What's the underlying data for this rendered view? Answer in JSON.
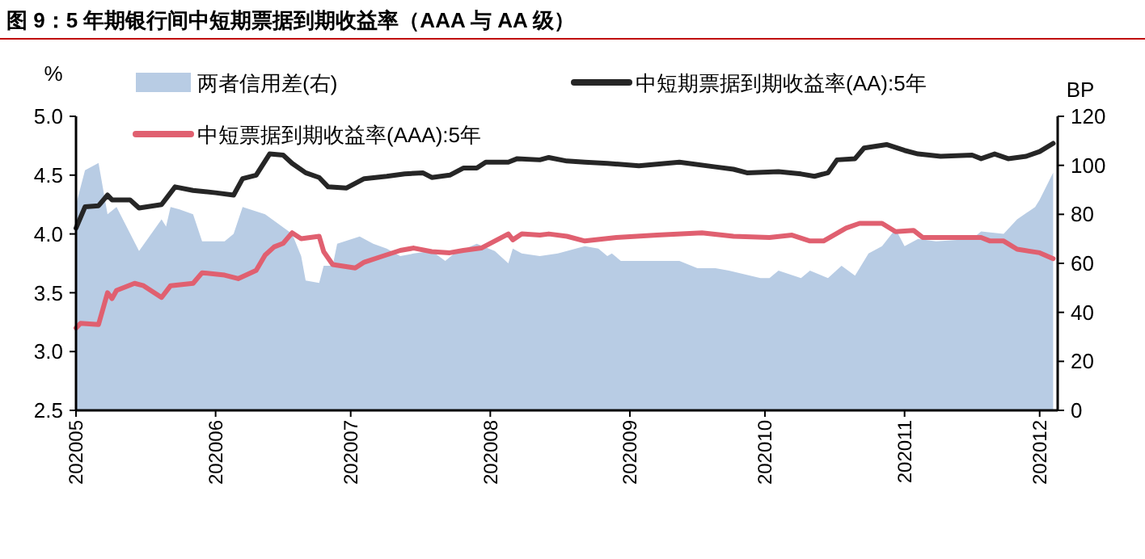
{
  "chart_data": {
    "type": "line",
    "title": "图 9：5 年期银行间中短期票据到期收益率（AAA 与 AA 级）",
    "ylabel": "%",
    "y2label": "BP",
    "xlim": [
      "2020-05-01",
      "2020-12-05"
    ],
    "xticks": [
      {
        "value": "2020-05-01",
        "label": "202005"
      },
      {
        "value": "2020-06-01",
        "label": "202006"
      },
      {
        "value": "2020-07-01",
        "label": "202007"
      },
      {
        "value": "2020-08-01",
        "label": "202008"
      },
      {
        "value": "2020-09-01",
        "label": "202009"
      },
      {
        "value": "2020-10-01",
        "label": "202010"
      },
      {
        "value": "2020-11-01",
        "label": "202011"
      },
      {
        "value": "2020-12-01",
        "label": "202012"
      }
    ],
    "ylim": [
      2.5,
      5
    ],
    "yticks": [
      2.5,
      {
        "value": 3,
        "label": "3.0"
      },
      3.5,
      {
        "value": 4,
        "label": "4.0"
      },
      4.5,
      {
        "value": 5,
        "label": "5.0"
      }
    ],
    "y2lim": [
      0,
      120
    ],
    "y2ticks": [
      0,
      20,
      40,
      60,
      80,
      100,
      120
    ],
    "grid": false,
    "legend": "top",
    "line_style": "solid",
    "marker": "none",
    "series": [
      {
        "name": "两者信用差(右)",
        "type": "area",
        "axis": "y2",
        "color": "#b8cce4",
        "x": [
          "2020-05-01",
          "2020-05-03",
          "2020-05-06",
          "2020-05-08",
          "2020-05-10",
          "2020-05-15",
          "2020-05-20",
          "2020-05-21",
          "2020-05-22",
          "2020-05-24",
          "2020-05-27",
          "2020-05-29",
          "2020-06-03",
          "2020-06-05",
          "2020-06-07",
          "2020-06-12",
          "2020-06-18",
          "2020-06-20",
          "2020-06-21",
          "2020-06-24",
          "2020-06-25",
          "2020-06-27",
          "2020-06-28",
          "2020-07-03",
          "2020-07-06",
          "2020-07-09",
          "2020-07-12",
          "2020-07-15",
          "2020-07-19",
          "2020-07-22",
          "2020-07-24",
          "2020-07-29",
          "2020-08-02",
          "2020-08-05",
          "2020-08-06",
          "2020-08-08",
          "2020-08-12",
          "2020-08-16",
          "2020-08-22",
          "2020-08-25",
          "2020-08-27",
          "2020-08-28",
          "2020-08-30",
          "2020-09-07",
          "2020-09-12",
          "2020-09-16",
          "2020-09-20",
          "2020-09-23",
          "2020-09-30",
          "2020-10-02",
          "2020-10-04",
          "2020-10-09",
          "2020-10-11",
          "2020-10-15",
          "2020-10-18",
          "2020-10-21",
          "2020-10-24",
          "2020-10-27",
          "2020-10-30",
          "2020-11-01",
          "2020-11-04",
          "2020-11-08",
          "2020-11-16",
          "2020-11-18",
          "2020-11-23",
          "2020-11-26",
          "2020-11-30",
          "2020-12-01",
          "2020-12-04"
        ],
        "values": [
          84,
          98,
          101,
          80,
          83,
          65,
          78,
          75,
          83,
          82,
          80,
          69,
          69,
          72,
          83,
          80,
          72,
          63,
          53,
          52,
          59,
          59,
          68,
          71,
          68,
          66,
          63,
          64,
          65,
          61,
          64,
          68,
          65,
          60,
          66,
          64,
          63,
          64,
          67,
          66,
          63,
          64,
          61,
          61,
          61,
          58,
          58,
          57,
          54,
          54,
          57,
          54,
          57,
          54,
          59,
          55,
          64,
          67,
          74,
          67,
          70,
          69,
          70,
          73,
          72,
          78,
          83,
          86,
          97
        ]
      },
      {
        "name": "中短期票据到期收益率(AA):5年",
        "color": "#262626",
        "x": [
          "2020-05-01",
          "2020-05-03",
          "2020-05-06",
          "2020-05-08",
          "2020-05-09",
          "2020-05-13",
          "2020-05-15",
          "2020-05-20",
          "2020-05-23",
          "2020-05-27",
          "2020-06-01",
          "2020-06-05",
          "2020-06-07",
          "2020-06-10",
          "2020-06-13",
          "2020-06-16",
          "2020-06-18",
          "2020-06-21",
          "2020-06-24",
          "2020-06-26",
          "2020-06-30",
          "2020-07-04",
          "2020-07-09",
          "2020-07-13",
          "2020-07-17",
          "2020-07-19",
          "2020-07-23",
          "2020-07-26",
          "2020-07-29",
          "2020-07-31",
          "2020-08-05",
          "2020-08-07",
          "2020-08-12",
          "2020-08-14",
          "2020-08-18",
          "2020-08-22",
          "2020-08-27",
          "2020-09-03",
          "2020-09-12",
          "2020-09-20",
          "2020-09-24",
          "2020-09-27",
          "2020-10-04",
          "2020-10-09",
          "2020-10-12",
          "2020-10-15",
          "2020-10-17",
          "2020-10-21",
          "2020-10-23",
          "2020-10-28",
          "2020-11-01",
          "2020-11-04",
          "2020-11-09",
          "2020-11-16",
          "2020-11-18",
          "2020-11-21",
          "2020-11-24",
          "2020-11-28",
          "2020-12-01",
          "2020-12-04"
        ],
        "values": [
          4.05,
          4.23,
          4.24,
          4.33,
          4.29,
          4.29,
          4.22,
          4.25,
          4.4,
          4.37,
          4.35,
          4.33,
          4.47,
          4.5,
          4.68,
          4.67,
          4.6,
          4.52,
          4.48,
          4.4,
          4.39,
          4.47,
          4.49,
          4.51,
          4.52,
          4.48,
          4.5,
          4.56,
          4.56,
          4.61,
          4.61,
          4.64,
          4.63,
          4.65,
          4.62,
          4.61,
          4.6,
          4.58,
          4.61,
          4.57,
          4.55,
          4.52,
          4.53,
          4.51,
          4.49,
          4.52,
          4.63,
          4.64,
          4.73,
          4.76,
          4.71,
          4.68,
          4.66,
          4.67,
          4.64,
          4.68,
          4.64,
          4.66,
          4.7,
          4.77
        ]
      },
      {
        "name": "中短票据到期收益率(AAA):5年",
        "color": "#e06070",
        "x": [
          "2020-05-01",
          "2020-05-02",
          "2020-05-06",
          "2020-05-08",
          "2020-05-09",
          "2020-05-10",
          "2020-05-14",
          "2020-05-16",
          "2020-05-20",
          "2020-05-22",
          "2020-05-27",
          "2020-05-29",
          "2020-06-03",
          "2020-06-06",
          "2020-06-10",
          "2020-06-12",
          "2020-06-14",
          "2020-06-16",
          "2020-06-18",
          "2020-06-20",
          "2020-06-24",
          "2020-06-25",
          "2020-06-27",
          "2020-07-02",
          "2020-07-04",
          "2020-07-08",
          "2020-07-12",
          "2020-07-15",
          "2020-07-19",
          "2020-07-23",
          "2020-07-26",
          "2020-07-30",
          "2020-08-02",
          "2020-08-05",
          "2020-08-06",
          "2020-08-08",
          "2020-08-12",
          "2020-08-14",
          "2020-08-18",
          "2020-08-22",
          "2020-08-29",
          "2020-09-07",
          "2020-09-17",
          "2020-09-24",
          "2020-10-02",
          "2020-10-07",
          "2020-10-11",
          "2020-10-14",
          "2020-10-19",
          "2020-10-22",
          "2020-10-27",
          "2020-10-30",
          "2020-11-03",
          "2020-11-05",
          "2020-11-18",
          "2020-11-20",
          "2020-11-23",
          "2020-11-26",
          "2020-12-01",
          "2020-12-04"
        ],
        "values": [
          3.2,
          3.24,
          3.23,
          3.5,
          3.45,
          3.52,
          3.58,
          3.56,
          3.46,
          3.56,
          3.58,
          3.67,
          3.65,
          3.62,
          3.69,
          3.82,
          3.89,
          3.92,
          4.01,
          3.96,
          3.98,
          3.85,
          3.74,
          3.71,
          3.76,
          3.81,
          3.86,
          3.88,
          3.85,
          3.84,
          3.86,
          3.88,
          3.94,
          4.0,
          3.95,
          4.0,
          3.99,
          4.0,
          3.98,
          3.94,
          3.97,
          3.99,
          4.01,
          3.98,
          3.97,
          3.99,
          3.94,
          3.94,
          4.05,
          4.09,
          4.09,
          4.02,
          4.03,
          3.97,
          3.97,
          3.94,
          3.94,
          3.87,
          3.84,
          3.79
        ]
      }
    ]
  }
}
